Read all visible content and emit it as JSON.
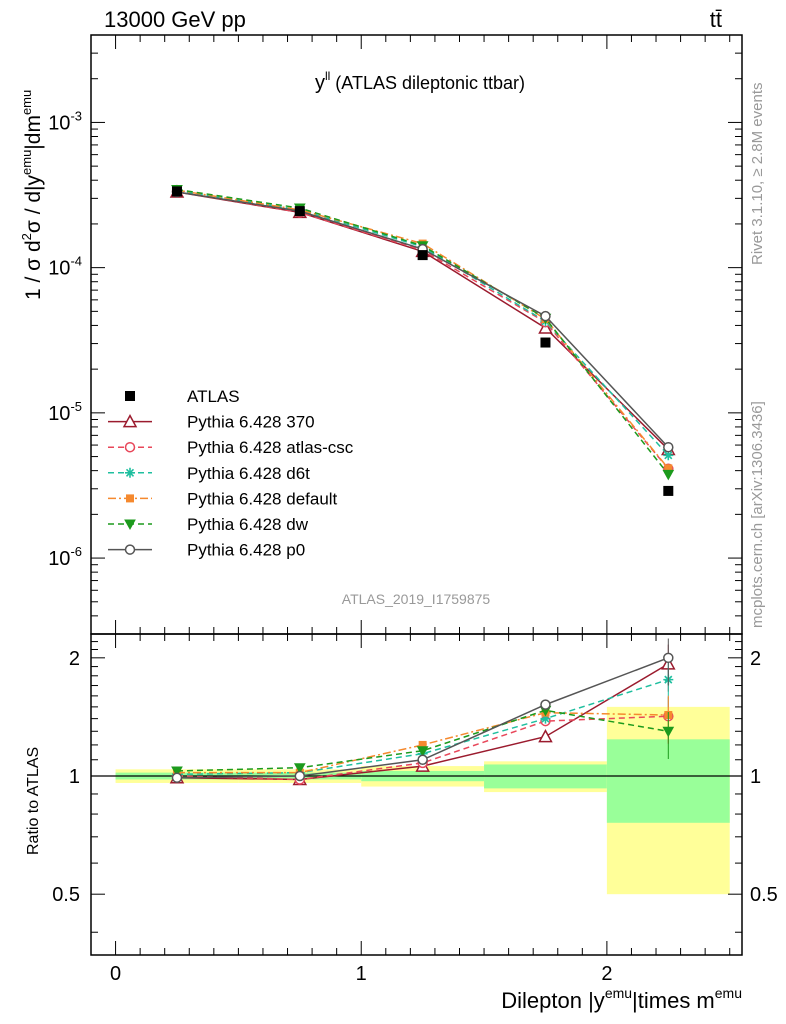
{
  "header": {
    "left": "13000 GeV pp",
    "right": "tt̄"
  },
  "side": {
    "rivet": "Rivet 3.1.10, ≥ 2.8M events",
    "mcplots": "mcplots.cern.ch [arXiv:1306.3436]"
  },
  "chart_data": {
    "type": "scatter",
    "title": "y^ll (ATLAS dileptonic ttbar)",
    "watermark": "ATLAS_2019_I1759875",
    "xlabel": "Dilepton |y^emu|times m^emu",
    "ylabel": "1 / σ d²σ / d|y^emu|dm^emu",
    "ratio_ylabel": "Ratio to ATLAS",
    "xlim": [
      -0.1,
      2.55
    ],
    "ylim": [
      3e-07,
      0.004
    ],
    "yscale": "log",
    "ratio_ylim": [
      0.35,
      2.3
    ],
    "x_ticks": [
      "0",
      "1",
      "2"
    ],
    "ratio_ticks": [
      "0.5",
      "1",
      "2"
    ],
    "x": [
      0.25,
      0.75,
      1.25,
      1.75,
      2.25
    ],
    "bins": [
      [
        0,
        0.5
      ],
      [
        0.5,
        1.0
      ],
      [
        1.0,
        1.5
      ],
      [
        1.5,
        2.0
      ],
      [
        2.0,
        2.5
      ]
    ],
    "data": {
      "name": "ATLAS",
      "values": [
        0.000335,
        0.000245,
        0.000122,
        3.05e-05,
        2.9e-06
      ],
      "band_stat": [
        0.02,
        0.02,
        0.03,
        0.07,
        0.24
      ],
      "band_total": [
        0.04,
        0.04,
        0.06,
        0.09,
        0.5
      ]
    },
    "series": [
      {
        "name": "Pythia 6.428 370",
        "color": "#9b1b2e",
        "marker": "triangle-open",
        "dash": "",
        "ratio": [
          0.99,
          0.98,
          1.06,
          1.26,
          1.93
        ]
      },
      {
        "name": "Pythia 6.428 atlas-csc",
        "color": "#e8475a",
        "marker": "circle-open",
        "dash": "6,4",
        "ratio": [
          1.0,
          0.98,
          1.08,
          1.38,
          1.42
        ]
      },
      {
        "name": "Pythia 6.428 d6t",
        "color": "#1fbf9f",
        "marker": "star",
        "dash": "6,4",
        "ratio": [
          1.01,
          1.02,
          1.14,
          1.4,
          1.76
        ]
      },
      {
        "name": "Pythia 6.428 default",
        "color": "#f5892e",
        "marker": "square",
        "dash": "8,3,2,3",
        "ratio": [
          1.02,
          1.02,
          1.2,
          1.45,
          1.43
        ]
      },
      {
        "name": "Pythia 6.428 dw",
        "color": "#1c9a1c",
        "marker": "triangle-down",
        "dash": "6,4",
        "ratio": [
          1.03,
          1.05,
          1.16,
          1.47,
          1.3
        ]
      },
      {
        "name": "Pythia 6.428 p0",
        "color": "#555555",
        "marker": "circle-open",
        "dash": "",
        "ratio": [
          0.99,
          1.0,
          1.1,
          1.52,
          2.0
        ]
      }
    ]
  }
}
